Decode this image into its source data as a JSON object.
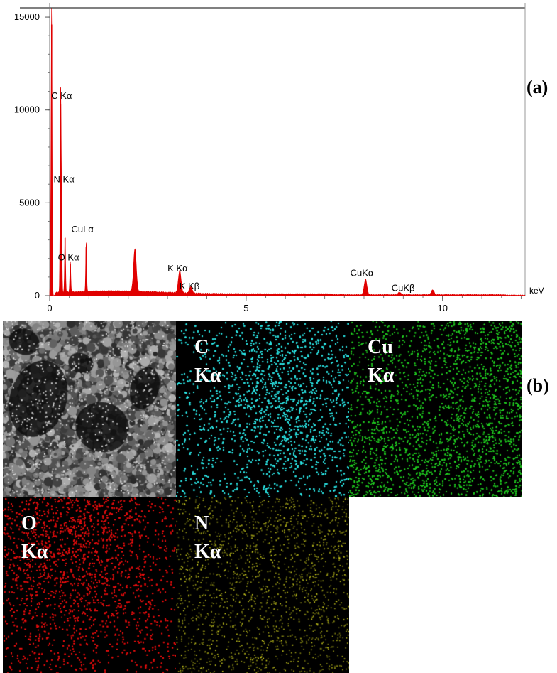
{
  "panel_labels": {
    "a": "(a)",
    "b": "(b)"
  },
  "chart_data": {
    "type": "line",
    "title": "",
    "xlabel": "keV",
    "ylabel": "",
    "xlim": [
      0,
      12.1
    ],
    "ylim": [
      0,
      15500
    ],
    "xticks": [
      0,
      5,
      10
    ],
    "yticks": [
      0,
      5000,
      10000,
      15000
    ],
    "grid": false,
    "color": "#e00000",
    "peaks": [
      {
        "x": 0.03,
        "y": 3300
      },
      {
        "x": 0.05,
        "y": 14600
      },
      {
        "x": 0.277,
        "y": 10300
      },
      {
        "x": 0.3,
        "y": 5000
      },
      {
        "x": 0.392,
        "y": 3100
      },
      {
        "x": 0.525,
        "y": 1700
      },
      {
        "x": 0.93,
        "y": 2600
      },
      {
        "x": 2.17,
        "y": 2300
      },
      {
        "x": 3.31,
        "y": 1200
      },
      {
        "x": 3.59,
        "y": 350
      },
      {
        "x": 8.04,
        "y": 830
      },
      {
        "x": 8.9,
        "y": 140
      },
      {
        "x": 9.75,
        "y": 260
      }
    ],
    "annotations": [
      {
        "text": "C Kα",
        "x": 0.04,
        "y": 10600
      },
      {
        "text": "N Kα",
        "x": 0.1,
        "y": 6100
      },
      {
        "text": "CuLα",
        "x": 0.55,
        "y": 3400
      },
      {
        "text": "O Kα",
        "x": 0.21,
        "y": 1900
      },
      {
        "text": "K Kα",
        "x": 3.0,
        "y": 1300
      },
      {
        "text": "K Kβ",
        "x": 3.3,
        "y": 350
      },
      {
        "text": "CuKα",
        "x": 7.65,
        "y": 1050
      },
      {
        "text": "CuKβ",
        "x": 8.7,
        "y": 250
      }
    ]
  },
  "maps": [
    {
      "name": "sem-image",
      "kind": "sem",
      "line1": "",
      "line2": ""
    },
    {
      "name": "c-map",
      "kind": "dots",
      "color": "#2ee6e6",
      "line1": "C",
      "line2": "Kα"
    },
    {
      "name": "cu-map",
      "kind": "dots",
      "color": "#22cc22",
      "line1": "Cu",
      "line2": "Kα"
    },
    {
      "name": "o-map",
      "kind": "dots",
      "color": "#e01010",
      "line1": "O",
      "line2": "Kα"
    },
    {
      "name": "n-map",
      "kind": "dots",
      "color": "#d8d820",
      "line1": "N",
      "line2": "Kα"
    }
  ]
}
